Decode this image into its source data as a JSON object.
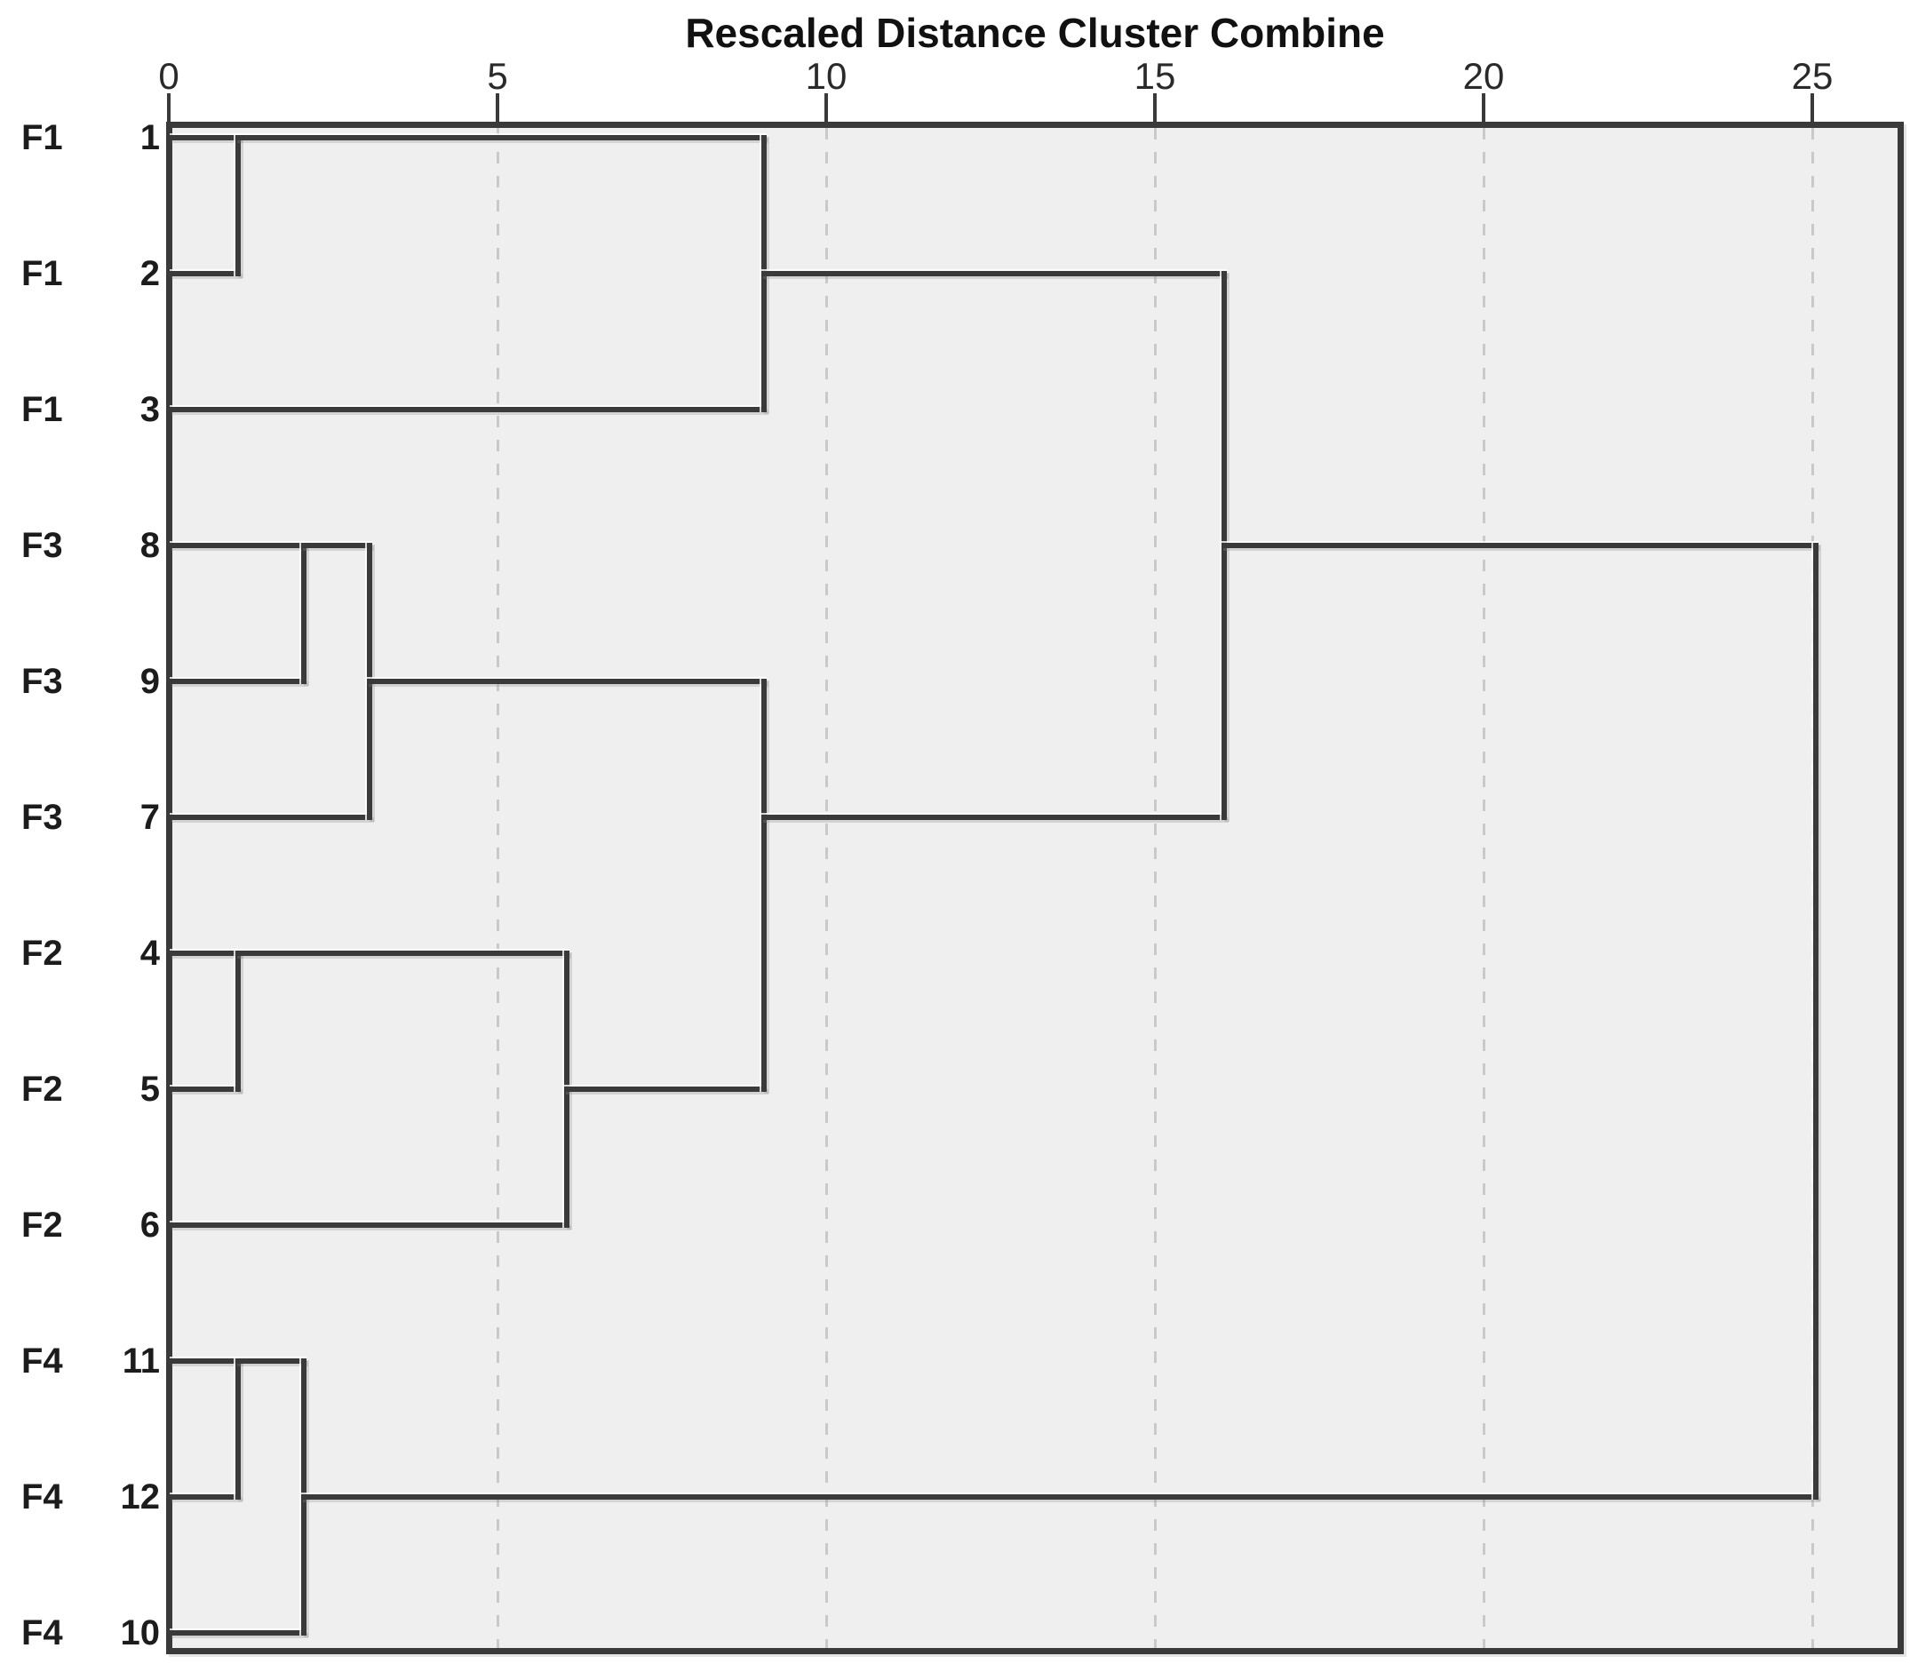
{
  "chart_data": {
    "type": "dendrogram",
    "title": "Rescaled Distance Cluster Combine",
    "orientation": "horizontal",
    "axis": {
      "position": "top",
      "min": 0,
      "max": 25,
      "ticks": [
        0,
        5,
        10,
        15,
        20,
        25
      ],
      "gridlines_dashed_at": [
        5,
        10,
        15,
        20,
        25
      ]
    },
    "leaves": [
      {
        "group": "F1",
        "case": "1"
      },
      {
        "group": "F1",
        "case": "2"
      },
      {
        "group": "F1",
        "case": "3"
      },
      {
        "group": "F3",
        "case": "8"
      },
      {
        "group": "F3",
        "case": "9"
      },
      {
        "group": "F3",
        "case": "7"
      },
      {
        "group": "F2",
        "case": "4"
      },
      {
        "group": "F2",
        "case": "5"
      },
      {
        "group": "F2",
        "case": "6"
      },
      {
        "group": "F4",
        "case": "11"
      },
      {
        "group": "F4",
        "case": "12"
      },
      {
        "group": "F4",
        "case": "10"
      }
    ],
    "merges": [
      {
        "a": "case:1",
        "b": "case:2",
        "distance": 1
      },
      {
        "a": "case:4",
        "b": "case:5",
        "distance": 1
      },
      {
        "a": "case:11",
        "b": "case:12",
        "distance": 1
      },
      {
        "a": "case:8",
        "b": "case:9",
        "distance": 2
      },
      {
        "a": "merge:2",
        "b": "case:10",
        "distance": 2
      },
      {
        "a": "merge:3",
        "b": "case:7",
        "distance": 3
      },
      {
        "a": "merge:1",
        "b": "case:6",
        "distance": 6
      },
      {
        "a": "merge:0",
        "b": "case:3",
        "distance": 9
      },
      {
        "a": "merge:5",
        "b": "merge:6",
        "distance": 9
      },
      {
        "a": "merge:7",
        "b": "merge:8",
        "distance": 16
      },
      {
        "a": "merge:9",
        "b": "merge:4",
        "distance": 25
      }
    ]
  },
  "colors": {
    "line": "#3a3a3a",
    "grid": "#c9c9c9",
    "plot_bg": "#efefef",
    "text": "#1c1c1c"
  }
}
